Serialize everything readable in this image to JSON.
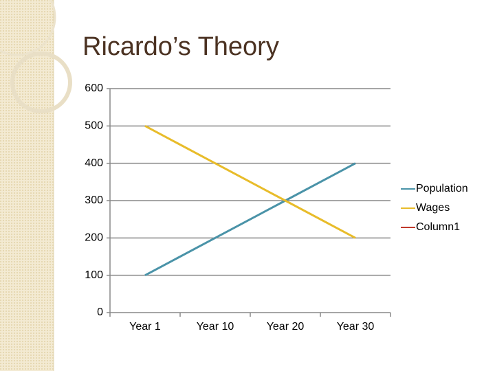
{
  "chart_data": {
    "type": "line",
    "title": "Ricardo’s Theory",
    "categories": [
      "Year 1",
      "Year 10",
      "Year 20",
      "Year 30"
    ],
    "series": [
      {
        "name": "Population",
        "color": "#4a93a8",
        "values": [
          100,
          200,
          300,
          400
        ]
      },
      {
        "name": "Wages",
        "color": "#e8bc2a",
        "values": [
          500,
          400,
          300,
          200
        ]
      },
      {
        "name": "Column1",
        "color": "#c0392b",
        "values": [
          null,
          null,
          null,
          null
        ]
      }
    ],
    "ylim": [
      0,
      600
    ],
    "yticks": [
      0,
      100,
      200,
      300,
      400,
      500,
      600
    ],
    "grid": true,
    "legend": "right"
  }
}
